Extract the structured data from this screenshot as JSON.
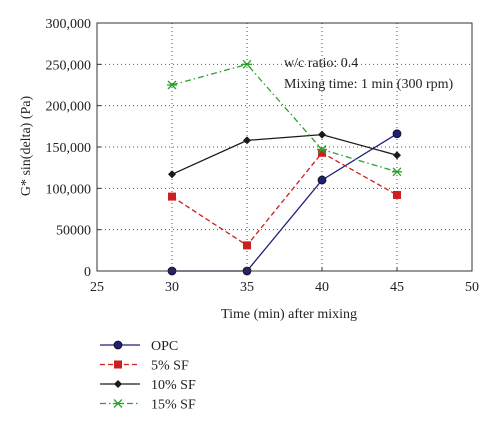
{
  "chart_data": {
    "type": "line",
    "xlabel": "Time (min) after mixing",
    "ylabel": "G* sin(delta) (Pa)",
    "xlim": [
      25,
      50
    ],
    "ylim": [
      0,
      300000
    ],
    "xticks": [
      25,
      30,
      35,
      40,
      45,
      50
    ],
    "yticks": [
      0,
      50000,
      100000,
      150000,
      200000,
      250000,
      300000
    ],
    "ytick_labels": [
      "0",
      "50000",
      "100,000",
      "150,000",
      "200,000",
      "250,000",
      "300,000"
    ],
    "xtick_labels": [
      "25",
      "30",
      "35",
      "40",
      "45",
      "50"
    ],
    "grid": true,
    "annotations": [
      "w/c ratio: 0.4",
      "Mixing time: 1 min (300 rpm)"
    ],
    "legend_position": "below",
    "x": [
      30,
      35,
      40,
      45
    ],
    "series": [
      {
        "name": "OPC",
        "values": [
          0,
          0,
          110000,
          166000
        ],
        "color": "#1f1f7a",
        "marker": "circle",
        "dash": "solid"
      },
      {
        "name": "5% SF",
        "values": [
          90000,
          31000,
          143000,
          92000
        ],
        "color": "#cc1f1f",
        "marker": "square",
        "dash": "dashed"
      },
      {
        "name": "10% SF",
        "values": [
          117000,
          158000,
          165000,
          140000
        ],
        "color": "#1a1a1a",
        "marker": "diamond",
        "dash": "solid"
      },
      {
        "name": "15% SF",
        "values": [
          225000,
          250000,
          147000,
          120000
        ],
        "color": "#2ca02c",
        "marker": "star",
        "dash": "dashdot"
      }
    ]
  }
}
